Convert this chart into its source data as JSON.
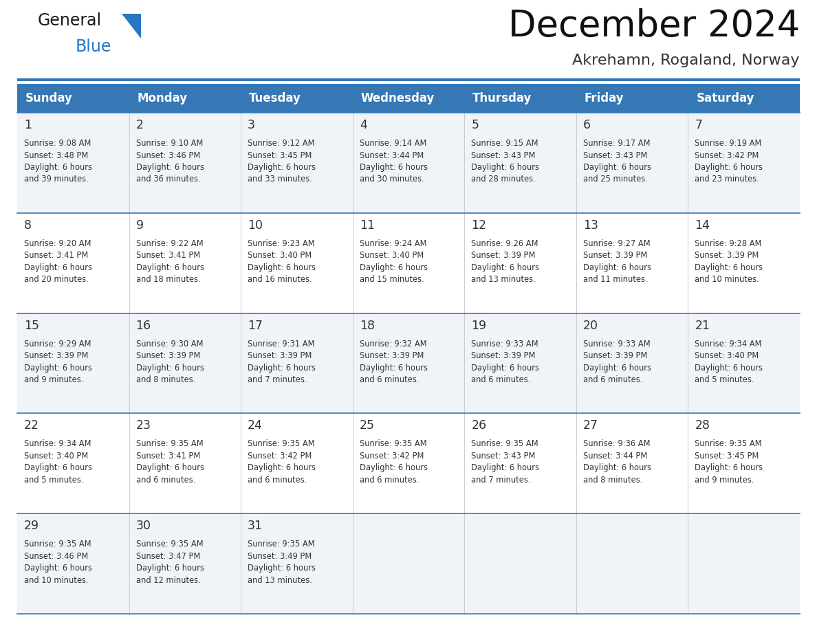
{
  "title": "December 2024",
  "subtitle": "Akrehamn, Rogaland, Norway",
  "days_of_week": [
    "Sunday",
    "Monday",
    "Tuesday",
    "Wednesday",
    "Thursday",
    "Friday",
    "Saturday"
  ],
  "header_bg": "#3578b5",
  "header_text": "#ffffff",
  "row_bg_odd": "#f0f4f8",
  "row_bg_even": "#ffffff",
  "border_color": "#3578b5",
  "text_color": "#333333",
  "title_color": "#111111",
  "subtitle_color": "#333333",
  "calendar_data": [
    [
      {
        "day": 1,
        "sunrise": "9:08 AM",
        "sunset": "3:48 PM",
        "daylight": "6 hours and 39 minutes"
      },
      {
        "day": 2,
        "sunrise": "9:10 AM",
        "sunset": "3:46 PM",
        "daylight": "6 hours and 36 minutes"
      },
      {
        "day": 3,
        "sunrise": "9:12 AM",
        "sunset": "3:45 PM",
        "daylight": "6 hours and 33 minutes"
      },
      {
        "day": 4,
        "sunrise": "9:14 AM",
        "sunset": "3:44 PM",
        "daylight": "6 hours and 30 minutes"
      },
      {
        "day": 5,
        "sunrise": "9:15 AM",
        "sunset": "3:43 PM",
        "daylight": "6 hours and 28 minutes"
      },
      {
        "day": 6,
        "sunrise": "9:17 AM",
        "sunset": "3:43 PM",
        "daylight": "6 hours and 25 minutes"
      },
      {
        "day": 7,
        "sunrise": "9:19 AM",
        "sunset": "3:42 PM",
        "daylight": "6 hours and 23 minutes"
      }
    ],
    [
      {
        "day": 8,
        "sunrise": "9:20 AM",
        "sunset": "3:41 PM",
        "daylight": "6 hours and 20 minutes"
      },
      {
        "day": 9,
        "sunrise": "9:22 AM",
        "sunset": "3:41 PM",
        "daylight": "6 hours and 18 minutes"
      },
      {
        "day": 10,
        "sunrise": "9:23 AM",
        "sunset": "3:40 PM",
        "daylight": "6 hours and 16 minutes"
      },
      {
        "day": 11,
        "sunrise": "9:24 AM",
        "sunset": "3:40 PM",
        "daylight": "6 hours and 15 minutes"
      },
      {
        "day": 12,
        "sunrise": "9:26 AM",
        "sunset": "3:39 PM",
        "daylight": "6 hours and 13 minutes"
      },
      {
        "day": 13,
        "sunrise": "9:27 AM",
        "sunset": "3:39 PM",
        "daylight": "6 hours and 11 minutes"
      },
      {
        "day": 14,
        "sunrise": "9:28 AM",
        "sunset": "3:39 PM",
        "daylight": "6 hours and 10 minutes"
      }
    ],
    [
      {
        "day": 15,
        "sunrise": "9:29 AM",
        "sunset": "3:39 PM",
        "daylight": "6 hours and 9 minutes"
      },
      {
        "day": 16,
        "sunrise": "9:30 AM",
        "sunset": "3:39 PM",
        "daylight": "6 hours and 8 minutes"
      },
      {
        "day": 17,
        "sunrise": "9:31 AM",
        "sunset": "3:39 PM",
        "daylight": "6 hours and 7 minutes"
      },
      {
        "day": 18,
        "sunrise": "9:32 AM",
        "sunset": "3:39 PM",
        "daylight": "6 hours and 6 minutes"
      },
      {
        "day": 19,
        "sunrise": "9:33 AM",
        "sunset": "3:39 PM",
        "daylight": "6 hours and 6 minutes"
      },
      {
        "day": 20,
        "sunrise": "9:33 AM",
        "sunset": "3:39 PM",
        "daylight": "6 hours and 6 minutes"
      },
      {
        "day": 21,
        "sunrise": "9:34 AM",
        "sunset": "3:40 PM",
        "daylight": "6 hours and 5 minutes"
      }
    ],
    [
      {
        "day": 22,
        "sunrise": "9:34 AM",
        "sunset": "3:40 PM",
        "daylight": "6 hours and 5 minutes"
      },
      {
        "day": 23,
        "sunrise": "9:35 AM",
        "sunset": "3:41 PM",
        "daylight": "6 hours and 6 minutes"
      },
      {
        "day": 24,
        "sunrise": "9:35 AM",
        "sunset": "3:42 PM",
        "daylight": "6 hours and 6 minutes"
      },
      {
        "day": 25,
        "sunrise": "9:35 AM",
        "sunset": "3:42 PM",
        "daylight": "6 hours and 6 minutes"
      },
      {
        "day": 26,
        "sunrise": "9:35 AM",
        "sunset": "3:43 PM",
        "daylight": "6 hours and 7 minutes"
      },
      {
        "day": 27,
        "sunrise": "9:36 AM",
        "sunset": "3:44 PM",
        "daylight": "6 hours and 8 minutes"
      },
      {
        "day": 28,
        "sunrise": "9:35 AM",
        "sunset": "3:45 PM",
        "daylight": "6 hours and 9 minutes"
      }
    ],
    [
      {
        "day": 29,
        "sunrise": "9:35 AM",
        "sunset": "3:46 PM",
        "daylight": "6 hours and 10 minutes"
      },
      {
        "day": 30,
        "sunrise": "9:35 AM",
        "sunset": "3:47 PM",
        "daylight": "6 hours and 12 minutes"
      },
      {
        "day": 31,
        "sunrise": "9:35 AM",
        "sunset": "3:49 PM",
        "daylight": "6 hours and 13 minutes"
      },
      null,
      null,
      null,
      null
    ]
  ],
  "fig_width": 11.88,
  "fig_height": 9.18,
  "dpi": 100
}
